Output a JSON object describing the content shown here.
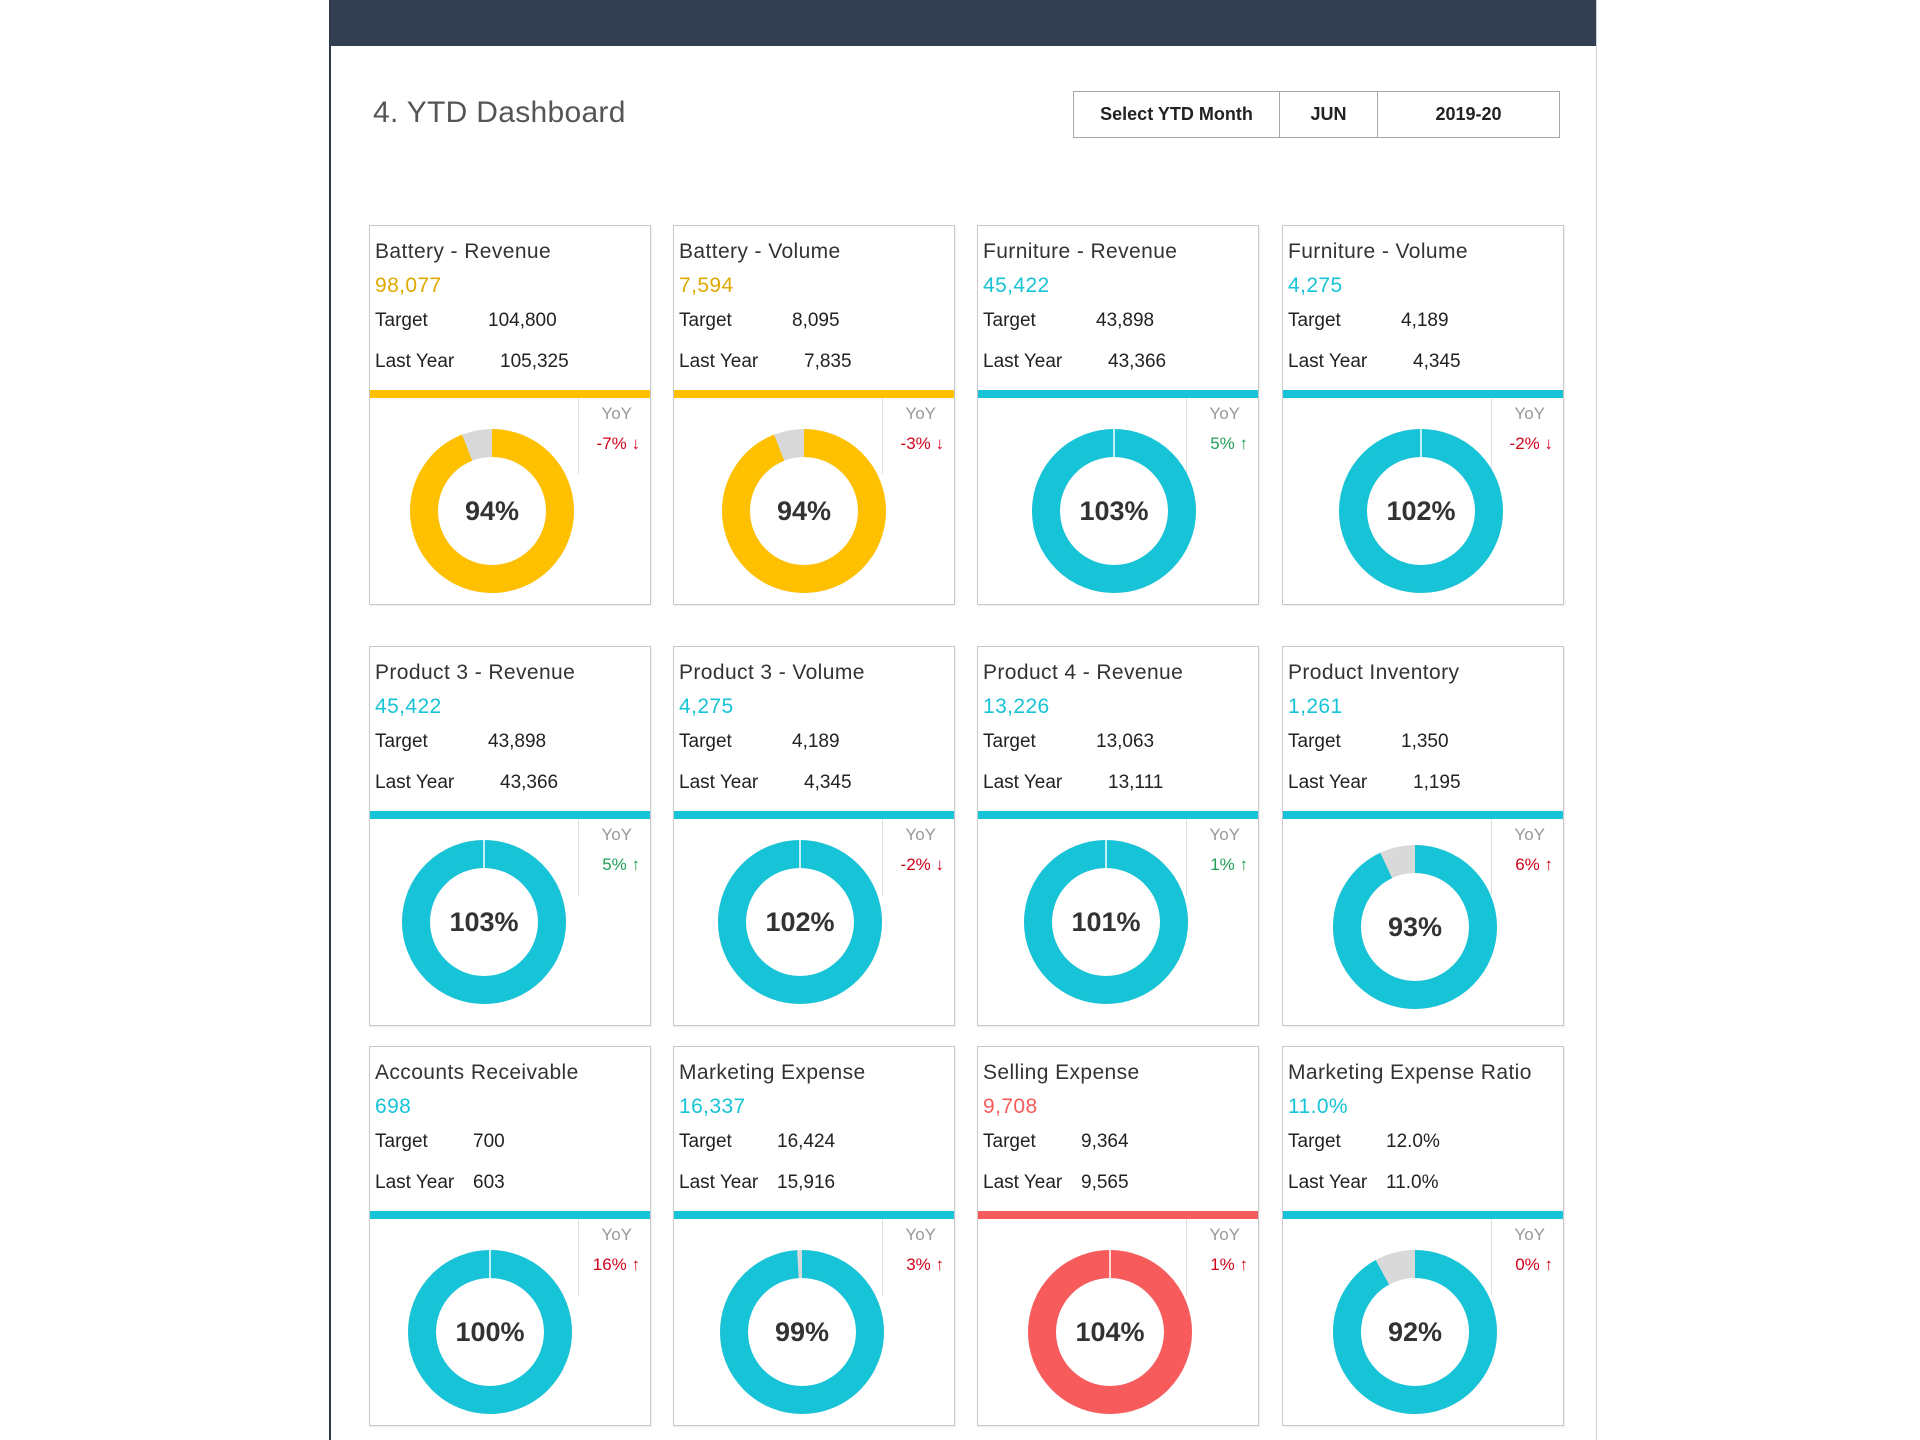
{
  "header": {
    "title": "4. YTD Dashboard",
    "selector_label": "Select YTD Month",
    "selector_month": "JUN",
    "selector_year": "2019-20"
  },
  "colors": {
    "gold": "#ffc000",
    "gold_text": "#e0a800",
    "teal": "#17c3d6",
    "red": "#f75b5b",
    "gray_ring": "#d9d9d9",
    "up": "#1f9d55",
    "down": "#d0021b"
  },
  "labels": {
    "target": "Target",
    "last_year": "Last Year",
    "yoy": "YoY"
  },
  "cards": [
    {
      "title": "Battery - Revenue",
      "value": "98,077",
      "target": "104,800",
      "last_year": "105,325",
      "pct_label": "94%",
      "pct": 94,
      "yoy": "-7% ↓",
      "yoy_dir": "down",
      "theme": "gold"
    },
    {
      "title": "Battery - Volume",
      "value": "7,594",
      "target": "8,095",
      "last_year": "7,835",
      "pct_label": "94%",
      "pct": 94,
      "yoy": "-3% ↓",
      "yoy_dir": "down",
      "theme": "gold"
    },
    {
      "title": "Furniture - Revenue",
      "value": "45,422",
      "target": "43,898",
      "last_year": "43,366",
      "pct_label": "103%",
      "pct": 103,
      "yoy": "5% ↑",
      "yoy_dir": "up",
      "theme": "teal"
    },
    {
      "title": "Furniture - Volume",
      "value": "4,275",
      "target": "4,189",
      "last_year": "4,345",
      "pct_label": "102%",
      "pct": 102,
      "yoy": "-2% ↓",
      "yoy_dir": "down",
      "theme": "teal"
    },
    {
      "title": "Product 3 - Revenue",
      "value": "45,422",
      "target": "43,898",
      "last_year": "43,366",
      "pct_label": "103%",
      "pct": 103,
      "yoy": "5% ↑",
      "yoy_dir": "up",
      "theme": "teal"
    },
    {
      "title": "Product 3 - Volume",
      "value": "4,275",
      "target": "4,189",
      "last_year": "4,345",
      "pct_label": "102%",
      "pct": 102,
      "yoy": "-2% ↓",
      "yoy_dir": "down",
      "theme": "teal"
    },
    {
      "title": "Product 4 - Revenue",
      "value": "13,226",
      "target": "13,063",
      "last_year": "13,111",
      "pct_label": "101%",
      "pct": 101,
      "yoy": "1% ↑",
      "yoy_dir": "up",
      "theme": "teal"
    },
    {
      "title": "Product Inventory",
      "value": "1,261",
      "target": "1,350",
      "last_year": "1,195",
      "pct_label": "93%",
      "pct": 93,
      "yoy": "6% ↑",
      "yoy_dir": "down",
      "theme": "teal"
    },
    {
      "title": "Accounts Receivable",
      "value": "698",
      "target": "700",
      "last_year": "603",
      "pct_label": "100%",
      "pct": 100,
      "yoy": "16% ↑",
      "yoy_dir": "down",
      "theme": "teal"
    },
    {
      "title": "Marketing Expense",
      "value": "16,337",
      "target": "16,424",
      "last_year": "15,916",
      "pct_label": "99%",
      "pct": 99,
      "yoy": "3% ↑",
      "yoy_dir": "down",
      "theme": "teal"
    },
    {
      "title": "Selling Expense",
      "value": "9,708",
      "target": "9,364",
      "last_year": "9,565",
      "pct_label": "104%",
      "pct": 104,
      "yoy": "1% ↑",
      "yoy_dir": "down",
      "theme": "red"
    },
    {
      "title": "Marketing Expense Ratio",
      "value": "11.0%",
      "target": "12.0%",
      "last_year": "11.0%",
      "pct_label": "92%",
      "pct": 92,
      "yoy": "0% ↑",
      "yoy_dir": "down",
      "theme": "teal"
    }
  ]
}
